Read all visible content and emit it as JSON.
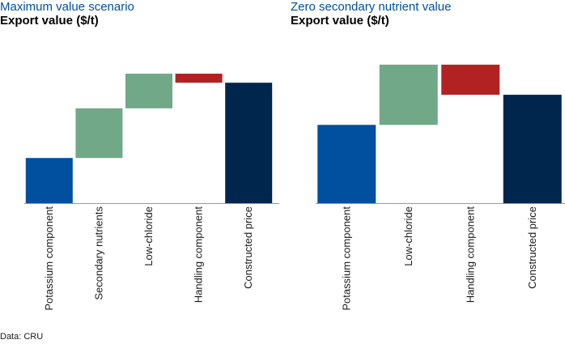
{
  "source": "Data: CRU",
  "colors": {
    "potassium": "#0050a0",
    "secondary": "#70a888",
    "lowchloride": "#70a888",
    "handling": "#b22222",
    "constructed": "#00264d"
  },
  "chart_data": [
    {
      "type": "bar",
      "subtitle": "Maximum value scenario",
      "title": "Export value ($/t)",
      "categories": [
        "Potassium component",
        "Secondary nutrients",
        "Low-chloride",
        "Handling component",
        "Constructed price"
      ],
      "series": [
        {
          "values": [
            {
              "start": 0,
              "end": 30,
              "color": "potassium"
            },
            {
              "start": 30,
              "end": 63,
              "color": "secondary"
            },
            {
              "start": 63,
              "end": 86,
              "color": "lowchloride"
            },
            {
              "start": 80,
              "end": 86,
              "color": "handling"
            },
            {
              "start": 0,
              "end": 80,
              "color": "constructed"
            }
          ]
        }
      ],
      "ylim": [
        0,
        100
      ],
      "grid": false
    },
    {
      "type": "bar",
      "subtitle": "Zero secondary nutrient value",
      "title": "Export value ($/t)",
      "categories": [
        "Potassium component",
        "Low-chloride",
        "Handling component",
        "Constructed price"
      ],
      "series": [
        {
          "values": [
            {
              "start": 0,
              "end": 52,
              "color": "potassium"
            },
            {
              "start": 52,
              "end": 92,
              "color": "lowchloride"
            },
            {
              "start": 72,
              "end": 92,
              "color": "handling"
            },
            {
              "start": 0,
              "end": 72,
              "color": "constructed"
            }
          ]
        }
      ],
      "ylim": [
        0,
        100
      ],
      "grid": false
    }
  ]
}
